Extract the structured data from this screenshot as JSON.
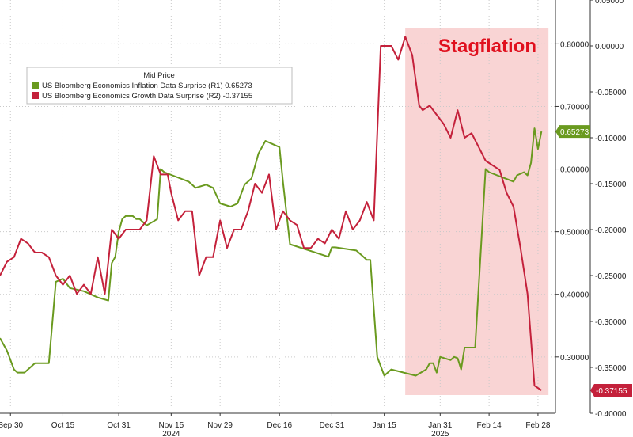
{
  "chart_data": {
    "type": "line",
    "legend": {
      "title": "Mid Price",
      "placement": "top-left"
    },
    "annotation": {
      "label": "Stagflation",
      "color": "#e0101e",
      "shade_color": "#f9d4d4",
      "x_range": [
        "2025-01-21",
        "2025-03-03"
      ]
    },
    "x_axis": {
      "start": "2024-09-27",
      "end": "2025-03-05",
      "ticks": [
        {
          "date": "2024-09-30",
          "label": "Sep 30"
        },
        {
          "date": "2024-10-15",
          "label": "Oct 15"
        },
        {
          "date": "2024-10-31",
          "label": "Oct 31"
        },
        {
          "date": "2024-11-15",
          "label": "Nov 15"
        },
        {
          "date": "2024-11-29",
          "label": "Nov 29"
        },
        {
          "date": "2024-12-16",
          "label": "Dec 16"
        },
        {
          "date": "2024-12-31",
          "label": "Dec 31"
        },
        {
          "date": "2025-01-15",
          "label": "Jan 15"
        },
        {
          "date": "2025-01-31",
          "label": "Jan 31"
        },
        {
          "date": "2025-02-14",
          "label": "Feb 14"
        },
        {
          "date": "2025-02-28",
          "label": "Feb 28"
        }
      ],
      "year_labels": [
        {
          "date": "2024-11-15",
          "label": "2024"
        },
        {
          "date": "2025-01-31",
          "label": "2025"
        }
      ]
    },
    "left_axis": {
      "ylim": [
        0.21,
        0.87
      ],
      "ticks": [
        {
          "value": 0.8,
          "label": "0.80000"
        },
        {
          "value": 0.7,
          "label": "0.70000"
        },
        {
          "value": 0.6,
          "label": "0.60000"
        },
        {
          "value": 0.5,
          "label": "0.50000"
        },
        {
          "value": 0.4,
          "label": "0.40000"
        },
        {
          "value": 0.3,
          "label": "0.30000"
        }
      ]
    },
    "right_axis": {
      "ylim": [
        -0.4,
        0.05
      ],
      "ticks": [
        {
          "value": 0.05,
          "label": "0.05000"
        },
        {
          "value": 0.0,
          "label": "0.00000"
        },
        {
          "value": -0.05,
          "label": "-0.05000"
        },
        {
          "value": -0.1,
          "label": "-0.10000"
        },
        {
          "value": -0.15,
          "label": "-0.15000"
        },
        {
          "value": -0.2,
          "label": "-0.20000"
        },
        {
          "value": -0.25,
          "label": "-0.25000"
        },
        {
          "value": -0.3,
          "label": "-0.30000"
        },
        {
          "value": -0.35,
          "label": "-0.35000"
        },
        {
          "value": -0.4,
          "label": "-0.40000"
        }
      ]
    },
    "series": [
      {
        "name": "US Bloomberg Economics Inflation Data Surprise",
        "axis_tag": "(R1)",
        "last_value": "0.65273",
        "axis": "left",
        "color": "#6a9a1f",
        "x": [
          "2024-09-27",
          "2024-09-29",
          "2024-10-01",
          "2024-10-02",
          "2024-10-04",
          "2024-10-07",
          "2024-10-09",
          "2024-10-11",
          "2024-10-13",
          "2024-10-15",
          "2024-10-17",
          "2024-10-21",
          "2024-10-25",
          "2024-10-28",
          "2024-10-29",
          "2024-10-30",
          "2024-10-31",
          "2024-11-01",
          "2024-11-02",
          "2024-11-04",
          "2024-11-05",
          "2024-11-06",
          "2024-11-08",
          "2024-11-11",
          "2024-11-12",
          "2024-11-13",
          "2024-11-20",
          "2024-11-22",
          "2024-11-25",
          "2024-11-27",
          "2024-11-29",
          "2024-12-02",
          "2024-12-04",
          "2024-12-06",
          "2024-12-08",
          "2024-12-10",
          "2024-12-12",
          "2024-12-14",
          "2024-12-16",
          "2024-12-17",
          "2024-12-19",
          "2024-12-30",
          "2024-12-31",
          "2025-01-01",
          "2025-01-07",
          "2025-01-09",
          "2025-01-10",
          "2025-01-11",
          "2025-01-13",
          "2025-01-15",
          "2025-01-17",
          "2025-01-24",
          "2025-01-27",
          "2025-01-28",
          "2025-01-29",
          "2025-01-30",
          "2025-01-31",
          "2025-02-03",
          "2025-02-04",
          "2025-02-05",
          "2025-02-06",
          "2025-02-07",
          "2025-02-10",
          "2025-02-13",
          "2025-02-14",
          "2025-02-21",
          "2025-02-22",
          "2025-02-24",
          "2025-02-25",
          "2025-02-26",
          "2025-02-27",
          "2025-02-28",
          "2025-03-01"
        ],
        "y": [
          0.33,
          0.31,
          0.28,
          0.275,
          0.275,
          0.29,
          0.29,
          0.29,
          0.42,
          0.425,
          0.41,
          0.405,
          0.395,
          0.39,
          0.45,
          0.46,
          0.5,
          0.52,
          0.525,
          0.525,
          0.52,
          0.52,
          0.51,
          0.52,
          0.6,
          0.595,
          0.58,
          0.57,
          0.575,
          0.57,
          0.545,
          0.54,
          0.545,
          0.575,
          0.585,
          0.625,
          0.645,
          0.64,
          0.635,
          0.58,
          0.48,
          0.46,
          0.475,
          0.475,
          0.47,
          0.46,
          0.455,
          0.455,
          0.3,
          0.27,
          0.28,
          0.27,
          0.28,
          0.29,
          0.29,
          0.275,
          0.3,
          0.295,
          0.3,
          0.298,
          0.28,
          0.315,
          0.315,
          0.6,
          0.595,
          0.58,
          0.59,
          0.595,
          0.59,
          0.61,
          0.665,
          0.632,
          0.66
        ]
      },
      {
        "name": "US Bloomberg Economics Growth Data Surprise",
        "axis_tag": "(R2)",
        "last_value": "-0.37155",
        "axis": "right",
        "color": "#c4213b",
        "x": [
          "2024-09-27",
          "2024-09-29",
          "2024-10-01",
          "2024-10-03",
          "2024-10-05",
          "2024-10-07",
          "2024-10-09",
          "2024-10-11",
          "2024-10-13",
          "2024-10-15",
          "2024-10-17",
          "2024-10-19",
          "2024-10-21",
          "2024-10-23",
          "2024-10-25",
          "2024-10-27",
          "2024-10-29",
          "2024-10-31",
          "2024-11-02",
          "2024-11-04",
          "2024-11-06",
          "2024-11-08",
          "2024-11-10",
          "2024-11-12",
          "2024-11-14",
          "2024-11-15",
          "2024-11-17",
          "2024-11-19",
          "2024-11-21",
          "2024-11-23",
          "2024-11-25",
          "2024-11-27",
          "2024-11-29",
          "2024-12-01",
          "2024-12-03",
          "2024-12-05",
          "2024-12-07",
          "2024-12-09",
          "2024-12-11",
          "2024-12-13",
          "2024-12-15",
          "2024-12-17",
          "2024-12-19",
          "2024-12-21",
          "2024-12-23",
          "2024-12-25",
          "2024-12-27",
          "2024-12-29",
          "2024-12-31",
          "2025-01-02",
          "2025-01-04",
          "2025-01-06",
          "2025-01-08",
          "2025-01-10",
          "2025-01-12",
          "2025-01-14",
          "2025-01-16",
          "2025-01-17",
          "2025-01-19",
          "2025-01-21",
          "2025-01-23",
          "2025-01-25",
          "2025-01-26",
          "2025-01-28",
          "2025-01-30",
          "2025-02-01",
          "2025-02-03",
          "2025-02-05",
          "2025-02-07",
          "2025-02-09",
          "2025-02-11",
          "2025-02-13",
          "2025-02-15",
          "2025-02-17",
          "2025-02-19",
          "2025-02-21",
          "2025-02-23",
          "2025-02-25",
          "2025-02-27",
          "2025-03-01"
        ],
        "y": [
          -0.25,
          -0.235,
          -0.23,
          -0.21,
          -0.215,
          -0.225,
          -0.225,
          -0.23,
          -0.25,
          -0.26,
          -0.25,
          -0.27,
          -0.26,
          -0.27,
          -0.23,
          -0.27,
          -0.2,
          -0.21,
          -0.2,
          -0.2,
          -0.2,
          -0.19,
          -0.12,
          -0.14,
          -0.14,
          -0.16,
          -0.19,
          -0.18,
          -0.18,
          -0.25,
          -0.23,
          -0.23,
          -0.19,
          -0.22,
          -0.2,
          -0.2,
          -0.18,
          -0.15,
          -0.16,
          -0.14,
          -0.2,
          -0.18,
          -0.19,
          -0.195,
          -0.22,
          -0.22,
          -0.21,
          -0.215,
          -0.2,
          -0.21,
          -0.18,
          -0.2,
          -0.19,
          -0.17,
          -0.19,
          0.0,
          0.0,
          0.0,
          -0.015,
          0.01,
          -0.01,
          -0.065,
          -0.07,
          -0.065,
          -0.075,
          -0.085,
          -0.1,
          -0.07,
          -0.1,
          -0.095,
          -0.11,
          -0.125,
          -0.13,
          -0.135,
          -0.16,
          -0.175,
          -0.22,
          -0.27,
          -0.37,
          -0.375
        ]
      }
    ]
  }
}
